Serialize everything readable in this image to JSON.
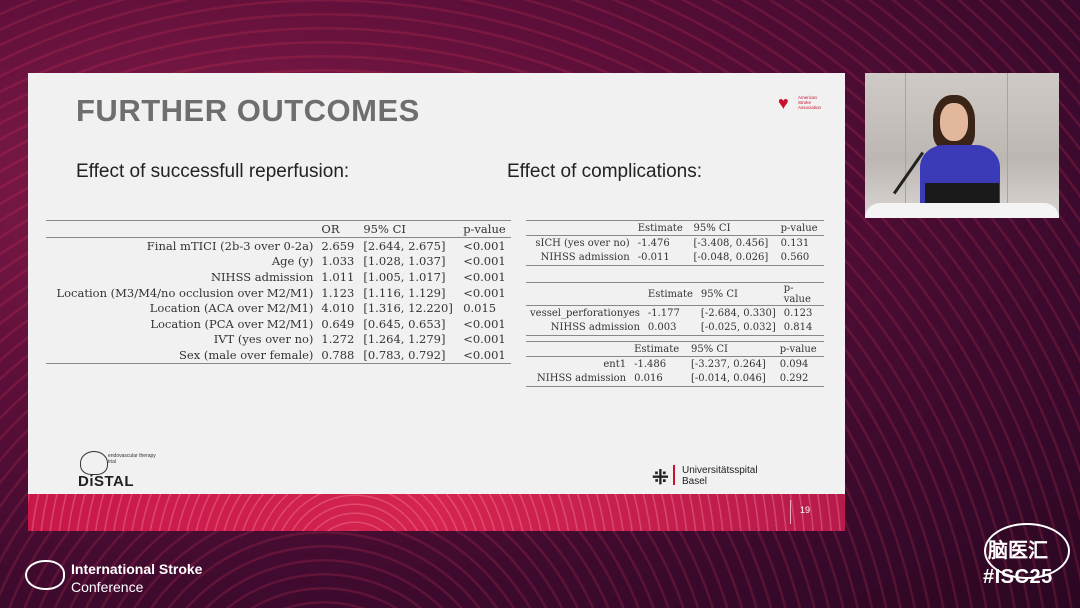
{
  "slide": {
    "title": "FURTHER OUTCOMES",
    "subtitle_left": "Effect of successfull reperfusion:",
    "subtitle_right": "Effect of complications:",
    "page_number": "19"
  },
  "main_table": {
    "headers": [
      "",
      "OR",
      "95% CI",
      "p-value"
    ],
    "rows": [
      [
        "Final mTICI (2b-3 over 0-2a)",
        "2.659",
        "[2.644, 2.675]",
        "<0.001"
      ],
      [
        "Age (y)",
        "1.033",
        "[1.028, 1.037]",
        "<0.001"
      ],
      [
        "NIHSS admission",
        "1.011",
        "[1.005, 1.017]",
        "<0.001"
      ],
      [
        "Location (M3/M4/no occlusion over M2/M1)",
        "1.123",
        "[1.116, 1.129]",
        "<0.001"
      ],
      [
        "Location (ACA over M2/M1)",
        "4.010",
        "[1.316, 12.220]",
        "0.015"
      ],
      [
        "Location (PCA over M2/M1)",
        "0.649",
        "[0.645, 0.653]",
        "<0.001"
      ],
      [
        "IVT (yes over no)",
        "1.272",
        "[1.264, 1.279]",
        "<0.001"
      ],
      [
        "Sex (male over female)",
        "0.788",
        "[0.783, 0.792]",
        "<0.001"
      ]
    ]
  },
  "comp_table_1": {
    "headers": [
      "",
      "Estimate",
      "95% CI",
      "p-value"
    ],
    "rows": [
      [
        "sICH (yes over no)",
        "-1.476",
        "[-3.408, 0.456]",
        "0.131"
      ],
      [
        "NIHSS admission",
        "-0.011",
        "[-0.048, 0.026]",
        "0.560"
      ]
    ]
  },
  "comp_table_2": {
    "headers": [
      "",
      "Estimate",
      "95% CI",
      "p-value"
    ],
    "rows": [
      [
        "vessel_perforationyes",
        "-1.177",
        "[-2.684, 0.330]",
        "0.123"
      ],
      [
        "NIHSS admission",
        "0.003",
        "[-0.025, 0.032]",
        "0.814"
      ]
    ]
  },
  "comp_table_3": {
    "headers": [
      "",
      "Estimate",
      "95% CI",
      "p-value"
    ],
    "rows": [
      [
        "ent1",
        "-1.486",
        "[-3.237, 0.264]",
        "0.094"
      ],
      [
        "NIHSS admission",
        "0.016",
        "[-0.014, 0.046]",
        "0.292"
      ]
    ]
  },
  "logos": {
    "aha_text": "American Stroke Association",
    "distal_tag": "endovascular therapy trial",
    "distal_name": "DiSTAL",
    "usb_line1": "Universitätsspital",
    "usb_line2": "Basel",
    "usb_mark": "⁜"
  },
  "conference": {
    "name_bold": "International Stroke",
    "name_rest": "Conference",
    "hashtag": "#ISC25",
    "watermark": "脑医汇"
  },
  "colors": {
    "brand_red": "#c8102e",
    "background": "#5e0f3a",
    "footer": "#d4244f"
  }
}
